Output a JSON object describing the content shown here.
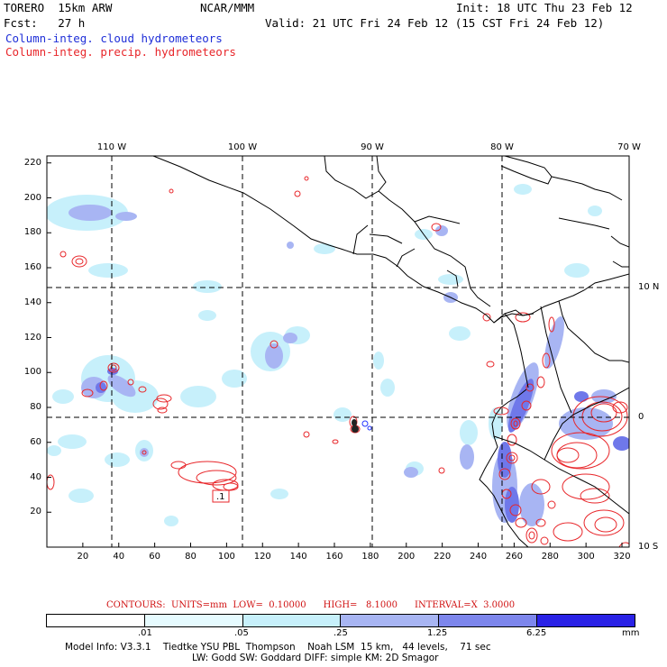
{
  "header": {
    "model": "TORERO  15km ARW",
    "org": "NCAR/MMM",
    "init": "Init: 18 UTC Thu 23 Feb 12",
    "fcst": "Fcst:   27 h",
    "valid": "Valid: 21 UTC Fri 24 Feb 12 (15 CST Fri 24 Feb 12)",
    "field1": "Column-integ. cloud hydrometeors",
    "field2": "Column-integ. precip. hydrometeors"
  },
  "map": {
    "x_ticks": [
      "20",
      "40",
      "60",
      "80",
      "100",
      "120",
      "140",
      "160",
      "180",
      "200",
      "220",
      "240",
      "260",
      "280",
      "300",
      "320"
    ],
    "y_ticks": [
      "20",
      "40",
      "60",
      "80",
      "100",
      "120",
      "140",
      "160",
      "180",
      "200",
      "220"
    ],
    "lon_labels": [
      "110 W",
      "100 W",
      "90 W",
      "80 W",
      "70 W"
    ],
    "lat_labels": [
      "10 N",
      "0",
      "10 S"
    ],
    "contour_label": ".1"
  },
  "contour_info": {
    "units": "CONTOURS:  UNITS=mm",
    "low": "LOW=  0.10000",
    "high": "HIGH=   8.1000",
    "interval": "INTERVAL=X  3.0000"
  },
  "colorbar": {
    "labels": [
      ".01",
      ".05",
      ".25",
      "1.25",
      "6.25"
    ],
    "unit": "mm",
    "colors": [
      "#ffffff",
      "#e6fbff",
      "#c7f0fb",
      "#a8b5f3",
      "#7d86ec",
      "#5558e6",
      "#2a22e6"
    ]
  },
  "footer": {
    "line1": "Model Info: V3.3.1    Tiedtke YSU PBL  Thompson    Noah LSM  15 km,   44 levels,    71 sec",
    "line2": "LW: Godd SW: Goddard DIFF: simple KM: 2D Smagor"
  }
}
